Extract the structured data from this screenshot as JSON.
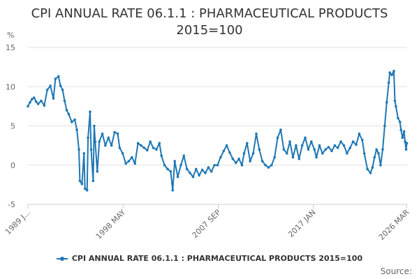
{
  "chart_data": {
    "type": "line",
    "title_lines": [
      "CPI ANNUAL RATE 06.1.1 : PHARMACEUTICAL PRODUCTS",
      "2015=100"
    ],
    "ylabel": "%",
    "ylim": [
      -5,
      15
    ],
    "yticks": [
      15,
      10,
      5,
      0,
      -5
    ],
    "xlim": [
      1989.0,
      2026.2
    ],
    "xtick_labels": [
      {
        "label": "1989 J...",
        "year": 1989.0
      },
      {
        "label": "1998 MAY",
        "year": 1998.33
      },
      {
        "label": "2007 SEP",
        "year": 2007.67
      },
      {
        "label": "2017 JAN",
        "year": 2017.0
      },
      {
        "label": "2026 MAR",
        "year": 2026.17
      }
    ],
    "legend": "CPI ANNUAL RATE 06.1.1 : PHARMACEUTICAL PRODUCTS 2015=100",
    "grid": true,
    "color": "#1f77b4",
    "series": [
      {
        "name": "CPI ANNUAL RATE 06.1.1 : PHARMACEUTICAL PRODUCTS 2015=100",
        "points": [
          [
            1989.0,
            7.5
          ],
          [
            1989.2,
            8.0
          ],
          [
            1989.4,
            8.4
          ],
          [
            1989.6,
            8.6
          ],
          [
            1989.8,
            8.1
          ],
          [
            1990.0,
            7.8
          ],
          [
            1990.3,
            8.2
          ],
          [
            1990.6,
            7.6
          ],
          [
            1990.9,
            9.6
          ],
          [
            1991.2,
            10.1
          ],
          [
            1991.5,
            8.5
          ],
          [
            1991.7,
            11.0
          ],
          [
            1992.0,
            11.3
          ],
          [
            1992.2,
            10.1
          ],
          [
            1992.4,
            9.6
          ],
          [
            1992.6,
            8.2
          ],
          [
            1992.8,
            7.0
          ],
          [
            1993.0,
            6.5
          ],
          [
            1993.3,
            5.5
          ],
          [
            1993.6,
            5.8
          ],
          [
            1993.8,
            4.5
          ],
          [
            1994.0,
            2.0
          ],
          [
            1994.1,
            -2.0
          ],
          [
            1994.3,
            -2.4
          ],
          [
            1994.5,
            1.5
          ],
          [
            1994.6,
            -3.0
          ],
          [
            1994.8,
            -3.2
          ],
          [
            1994.9,
            3.5
          ],
          [
            1995.1,
            6.8
          ],
          [
            1995.2,
            2.0
          ],
          [
            1995.4,
            -2.0
          ],
          [
            1995.5,
            5.0
          ],
          [
            1995.6,
            3.0
          ],
          [
            1995.8,
            -0.8
          ],
          [
            1996.0,
            3.0
          ],
          [
            1996.3,
            4.0
          ],
          [
            1996.6,
            2.5
          ],
          [
            1996.9,
            3.5
          ],
          [
            1997.2,
            2.5
          ],
          [
            1997.5,
            4.2
          ],
          [
            1997.8,
            4.0
          ],
          [
            1998.0,
            2.2
          ],
          [
            1998.3,
            1.5
          ],
          [
            1998.6,
            0.2
          ],
          [
            1998.9,
            0.5
          ],
          [
            1999.2,
            1.0
          ],
          [
            1999.5,
            0.2
          ],
          [
            1999.8,
            2.8
          ],
          [
            2000.1,
            2.5
          ],
          [
            2000.4,
            2.2
          ],
          [
            2000.7,
            1.9
          ],
          [
            2001.0,
            3.0
          ],
          [
            2001.3,
            2.2
          ],
          [
            2001.6,
            2.0
          ],
          [
            2001.9,
            2.8
          ],
          [
            2002.1,
            1.2
          ],
          [
            2002.4,
            0.0
          ],
          [
            2002.7,
            -0.5
          ],
          [
            2003.0,
            -0.8
          ],
          [
            2003.2,
            -3.2
          ],
          [
            2003.4,
            0.5
          ],
          [
            2003.7,
            -1.5
          ],
          [
            2004.0,
            0.0
          ],
          [
            2004.3,
            1.2
          ],
          [
            2004.6,
            -0.5
          ],
          [
            2004.9,
            -1.0
          ],
          [
            2005.2,
            -1.5
          ],
          [
            2005.5,
            -0.5
          ],
          [
            2005.8,
            -1.3
          ],
          [
            2006.1,
            -0.6
          ],
          [
            2006.4,
            -1.0
          ],
          [
            2006.7,
            -0.3
          ],
          [
            2007.0,
            -0.8
          ],
          [
            2007.3,
            0.0
          ],
          [
            2007.6,
            0.0
          ],
          [
            2007.9,
            1.0
          ],
          [
            2008.2,
            1.8
          ],
          [
            2008.5,
            2.5
          ],
          [
            2008.8,
            1.6
          ],
          [
            2009.1,
            0.8
          ],
          [
            2009.4,
            0.3
          ],
          [
            2009.7,
            0.8
          ],
          [
            2010.0,
            0.0
          ],
          [
            2010.2,
            1.5
          ],
          [
            2010.5,
            2.8
          ],
          [
            2010.8,
            0.5
          ],
          [
            2011.1,
            1.5
          ],
          [
            2011.4,
            4.0
          ],
          [
            2011.7,
            2.0
          ],
          [
            2012.0,
            0.5
          ],
          [
            2012.3,
            0.0
          ],
          [
            2012.6,
            -0.3
          ],
          [
            2012.9,
            0.0
          ],
          [
            2013.2,
            1.0
          ],
          [
            2013.5,
            3.5
          ],
          [
            2013.8,
            4.5
          ],
          [
            2014.1,
            2.0
          ],
          [
            2014.4,
            1.5
          ],
          [
            2014.7,
            3.0
          ],
          [
            2015.0,
            1.0
          ],
          [
            2015.3,
            2.5
          ],
          [
            2015.6,
            0.8
          ],
          [
            2015.9,
            2.5
          ],
          [
            2016.2,
            3.5
          ],
          [
            2016.5,
            2.0
          ],
          [
            2016.8,
            3.0
          ],
          [
            2017.1,
            2.0
          ],
          [
            2017.3,
            1.0
          ],
          [
            2017.6,
            2.5
          ],
          [
            2017.9,
            1.5
          ],
          [
            2018.2,
            2.0
          ],
          [
            2018.5,
            2.3
          ],
          [
            2018.8,
            1.8
          ],
          [
            2019.1,
            2.5
          ],
          [
            2019.4,
            2.2
          ],
          [
            2019.7,
            3.0
          ],
          [
            2020.0,
            2.5
          ],
          [
            2020.3,
            1.5
          ],
          [
            2020.6,
            2.2
          ],
          [
            2020.9,
            3.0
          ],
          [
            2021.2,
            2.6
          ],
          [
            2021.5,
            4.0
          ],
          [
            2021.8,
            3.2
          ],
          [
            2022.0,
            1.5
          ],
          [
            2022.3,
            -0.5
          ],
          [
            2022.6,
            -1.0
          ],
          [
            2022.8,
            -0.3
          ],
          [
            2023.0,
            1.0
          ],
          [
            2023.2,
            2.0
          ],
          [
            2023.4,
            1.5
          ],
          [
            2023.6,
            0.0
          ],
          [
            2023.8,
            2.0
          ],
          [
            2024.0,
            5.0
          ],
          [
            2024.2,
            8.0
          ],
          [
            2024.4,
            10.5
          ],
          [
            2024.5,
            11.8
          ],
          [
            2024.7,
            11.5
          ],
          [
            2024.9,
            12.0
          ],
          [
            2025.0,
            8.2
          ],
          [
            2025.1,
            7.5
          ],
          [
            2025.3,
            6.0
          ],
          [
            2025.5,
            5.5
          ],
          [
            2025.6,
            4.5
          ],
          [
            2025.75,
            3.5
          ],
          [
            2025.9,
            4.3
          ],
          [
            2026.0,
            3.0
          ],
          [
            2026.1,
            2.0
          ],
          [
            2026.17,
            2.8
          ]
        ]
      }
    ]
  },
  "footer": {
    "source_label": "Source:"
  }
}
